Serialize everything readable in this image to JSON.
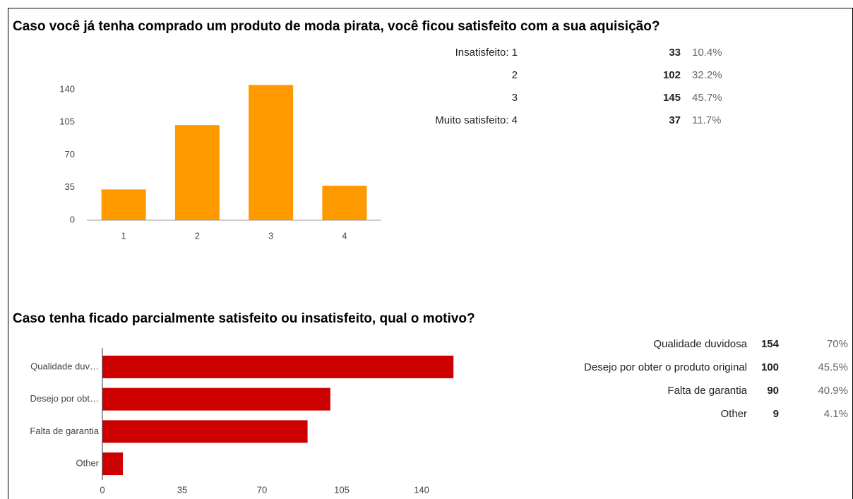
{
  "chart_data": [
    {
      "type": "bar",
      "title": "Caso você já tenha comprado um produto de moda pirata, você ficou satisfeito com a sua aquisição?",
      "categories": [
        "1",
        "2",
        "3",
        "4"
      ],
      "values": [
        33,
        102,
        145,
        37
      ],
      "color": "#ff9900",
      "ylim": [
        0,
        140
      ],
      "yticks": [
        0,
        35,
        70,
        105,
        140
      ],
      "table": {
        "labels": [
          "Insatisfeito: 1",
          "2",
          "3",
          "Muito satisfeito: 4"
        ],
        "percentages": [
          "10.4%",
          "32.2%",
          "45.7%",
          "11.7%"
        ]
      }
    },
    {
      "type": "barh",
      "title": "Caso tenha ficado parcialmente satisfeito ou insatisfeito, qual o motivo?",
      "categories": [
        "Qualidade duv…",
        "Desejo por obt…",
        "Falta de garantia",
        "Other"
      ],
      "values": [
        154,
        100,
        90,
        9
      ],
      "color": "#cc0000",
      "xlim": [
        0,
        140
      ],
      "xticks": [
        0,
        35,
        70,
        105,
        140
      ],
      "table": {
        "labels": [
          "Qualidade duvidosa",
          "Desejo por obter o produto original",
          "Falta de garantia",
          "Other"
        ],
        "percentages": [
          "70%",
          "45.5%",
          "40.9%",
          "4.1%"
        ]
      }
    }
  ]
}
